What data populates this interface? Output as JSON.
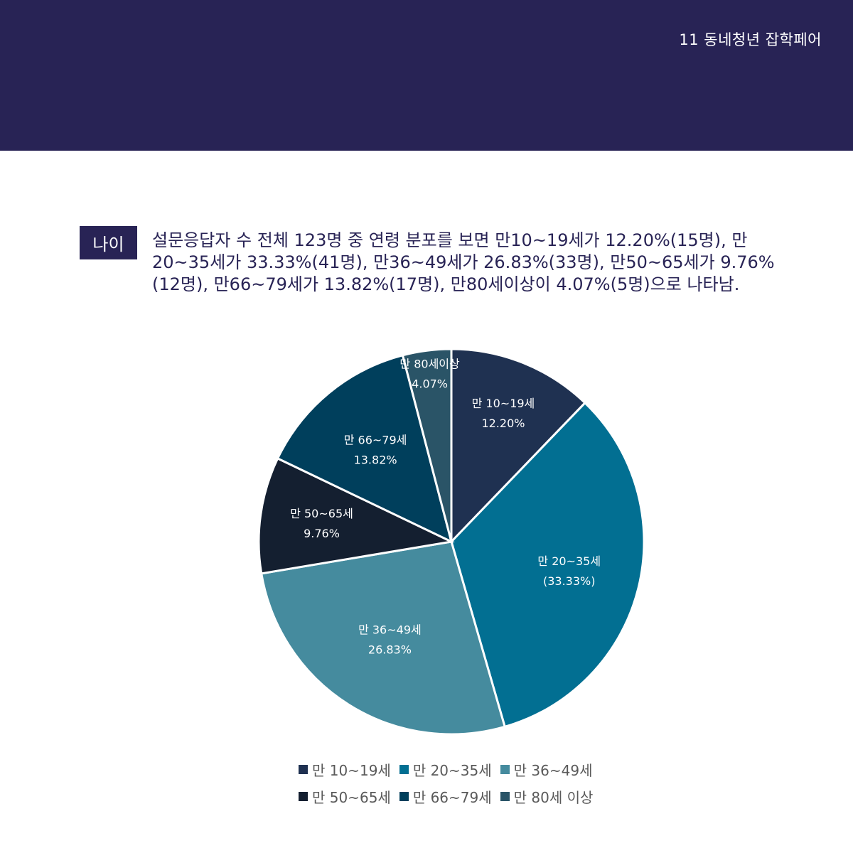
{
  "header": {
    "page_label": "11 동네청년 잡학페어"
  },
  "section": {
    "tag": "나이",
    "description": "설문응답자 수 전체 123명 중 연령 분포를 보면 만10~19세가 12.20%(15명), 만20~35세가 33.33%(41명), 만36~49세가 26.83%(33명), 만50~65세가 9.76%(12명), 만66~79세가 13.82%(17명), 만80세이상이 4.07%(5명)으로 나타남."
  },
  "chart_data": {
    "type": "pie",
    "categories": [
      "만 10~19세",
      "만 20~35세",
      "만 36~49세",
      "만 50~65세",
      "만 66~79세",
      "만 80세 이상"
    ],
    "values": [
      12.2,
      33.33,
      26.83,
      9.76,
      13.82,
      4.07
    ],
    "slice_labels": [
      [
        "만 10~19세",
        "12.20%"
      ],
      [
        "만 20~35세",
        "(33.33%)"
      ],
      [
        "만 36~49세",
        "26.83%"
      ],
      [
        "만 50~65세",
        "9.76%"
      ],
      [
        "만 66~79세",
        "13.82%"
      ],
      [
        "만 80세이상",
        "4.07%"
      ]
    ],
    "colors": [
      "#1f3151",
      "#026f92",
      "#458b9e",
      "#141f30",
      "#003f5c",
      "#2a5467"
    ],
    "legend": [
      "만 10~19세",
      "만 20~35세",
      "만 36~49세",
      "만 50~65세",
      "만 66~79세",
      "만 80세 이상"
    ],
    "legend_placement": "bottom"
  }
}
